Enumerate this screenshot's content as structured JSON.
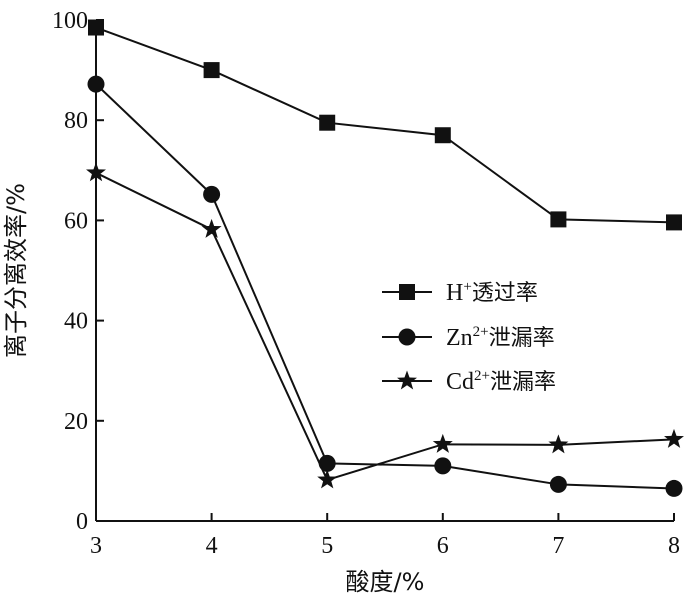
{
  "chart_data": {
    "type": "line",
    "xlabel": "酸度/%",
    "ylabel": "离子分离效率/%",
    "x": [
      3,
      4,
      5,
      6,
      7,
      8
    ],
    "xlim": [
      3,
      8
    ],
    "ylim": [
      0,
      100
    ],
    "xticks": [
      "3",
      "4",
      "5",
      "6",
      "7",
      "8"
    ],
    "yticks": [
      "0",
      "20",
      "40",
      "60",
      "80",
      "100"
    ],
    "grid": false,
    "legend_position": "center-right",
    "series": [
      {
        "name": "H+透过率",
        "legend": {
          "base": "H",
          "sup": "+",
          "rest": "透过率"
        },
        "marker": "square",
        "values": [
          98.5,
          90.0,
          79.5,
          77.0,
          60.2,
          59.6
        ]
      },
      {
        "name": "Zn2+泄漏率",
        "legend": {
          "base": "Zn",
          "sup": "2+",
          "rest": "泄漏率"
        },
        "marker": "circle",
        "values": [
          87.2,
          65.2,
          11.5,
          11.0,
          7.3,
          6.5
        ]
      },
      {
        "name": "Cd2+泄漏率",
        "legend": {
          "base": "Cd",
          "sup": "2+",
          "rest": "泄漏率"
        },
        "marker": "star",
        "values": [
          69.5,
          58.2,
          8.2,
          15.3,
          15.2,
          16.3
        ]
      }
    ]
  }
}
